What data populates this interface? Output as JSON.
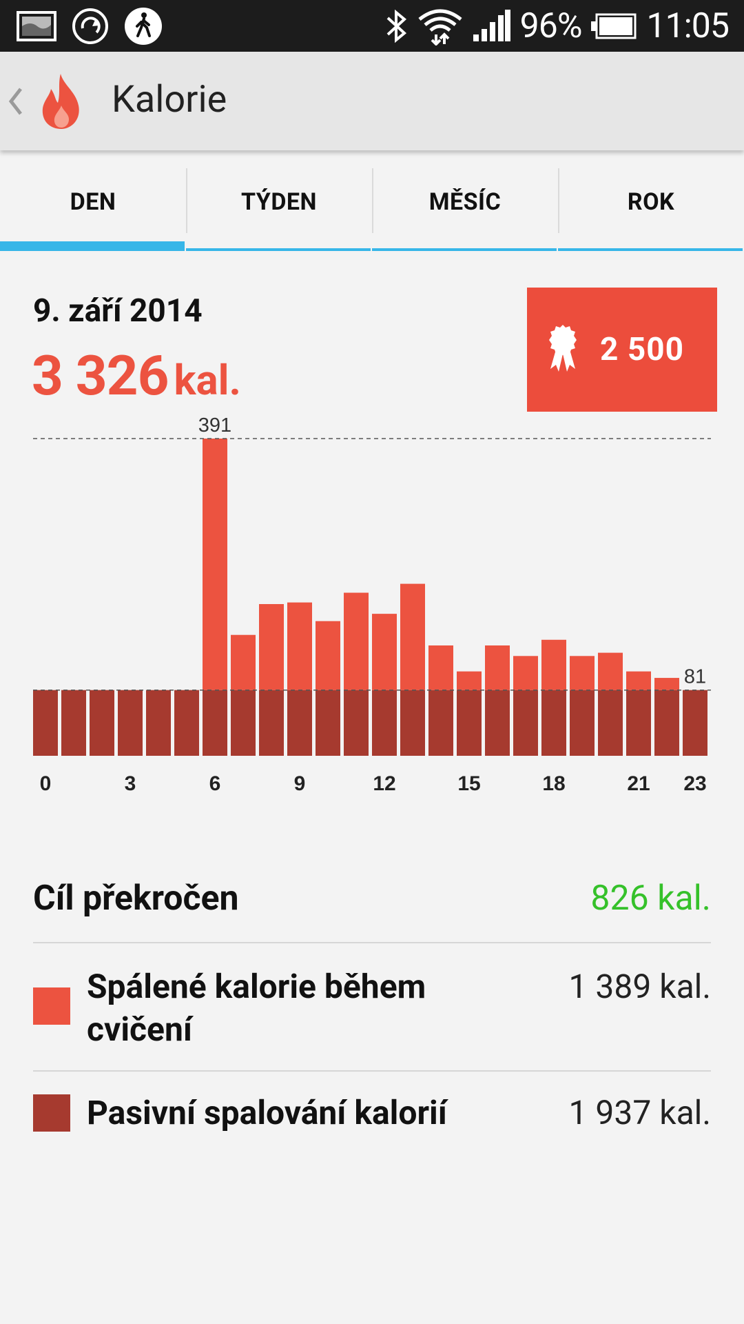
{
  "status_bar": {
    "battery_percent": "96%",
    "time": "11:05",
    "left_icons": [
      "picture-notification-icon",
      "sync-notification-icon",
      "walking-notification-icon"
    ],
    "right_icons": [
      "bluetooth-icon",
      "wifi-icon",
      "signal-icon",
      "battery-icon"
    ]
  },
  "app_bar": {
    "title": "Kalorie",
    "icon": "flame-icon"
  },
  "tabs": [
    {
      "label": "DEN",
      "active": true
    },
    {
      "label": "TÝDEN",
      "active": false
    },
    {
      "label": "MĚSÍC",
      "active": false
    },
    {
      "label": "ROK",
      "active": false
    }
  ],
  "summary": {
    "date": "9. září 2014",
    "total_value": "3 326",
    "total_unit": "kal.",
    "goal_value": "2 500",
    "goal_icon": "ribbon-award-icon"
  },
  "colors": {
    "accent_red": "#ec5340",
    "dark_red": "#a63a2f",
    "tab_blue": "#37b6e8",
    "green": "#35c12a"
  },
  "chart_data": {
    "type": "bar",
    "stacked": true,
    "x": [
      0,
      1,
      2,
      3,
      4,
      5,
      6,
      7,
      8,
      9,
      10,
      11,
      12,
      13,
      14,
      15,
      16,
      17,
      18,
      19,
      20,
      21,
      22,
      23
    ],
    "x_tick_labels": [
      "0",
      "3",
      "6",
      "9",
      "12",
      "15",
      "18",
      "21",
      "23"
    ],
    "x_tick_positions": [
      0,
      3,
      6,
      9,
      12,
      15,
      18,
      21,
      23
    ],
    "series": [
      {
        "values": [
          81,
          81,
          81,
          81,
          81,
          81,
          81,
          81,
          81,
          81,
          81,
          81,
          81,
          81,
          81,
          81,
          81,
          81,
          81,
          81,
          81,
          81,
          81,
          81
        ]
      },
      {
        "values": [
          0,
          0,
          0,
          0,
          0,
          0,
          310,
          68,
          106,
          108,
          85,
          120,
          94,
          131,
          55,
          23,
          55,
          42,
          62,
          42,
          46,
          23,
          15,
          0
        ]
      }
    ],
    "annotations": [
      {
        "text": "391",
        "value": 391,
        "x": 6
      },
      {
        "text": "81",
        "value": 81,
        "x": 23
      }
    ],
    "reference_lines": [
      391,
      81
    ],
    "ylim": [
      0,
      391
    ]
  },
  "stats": {
    "goal_exceeded_label": "Cíl překročen",
    "goal_exceeded_value": "826 kal.",
    "exercise_label": "Spálené kalorie během cvičení",
    "exercise_value": "1 389 kal.",
    "passive_label": "Pasivní spalování kalorií",
    "passive_value": "1 937 kal."
  }
}
